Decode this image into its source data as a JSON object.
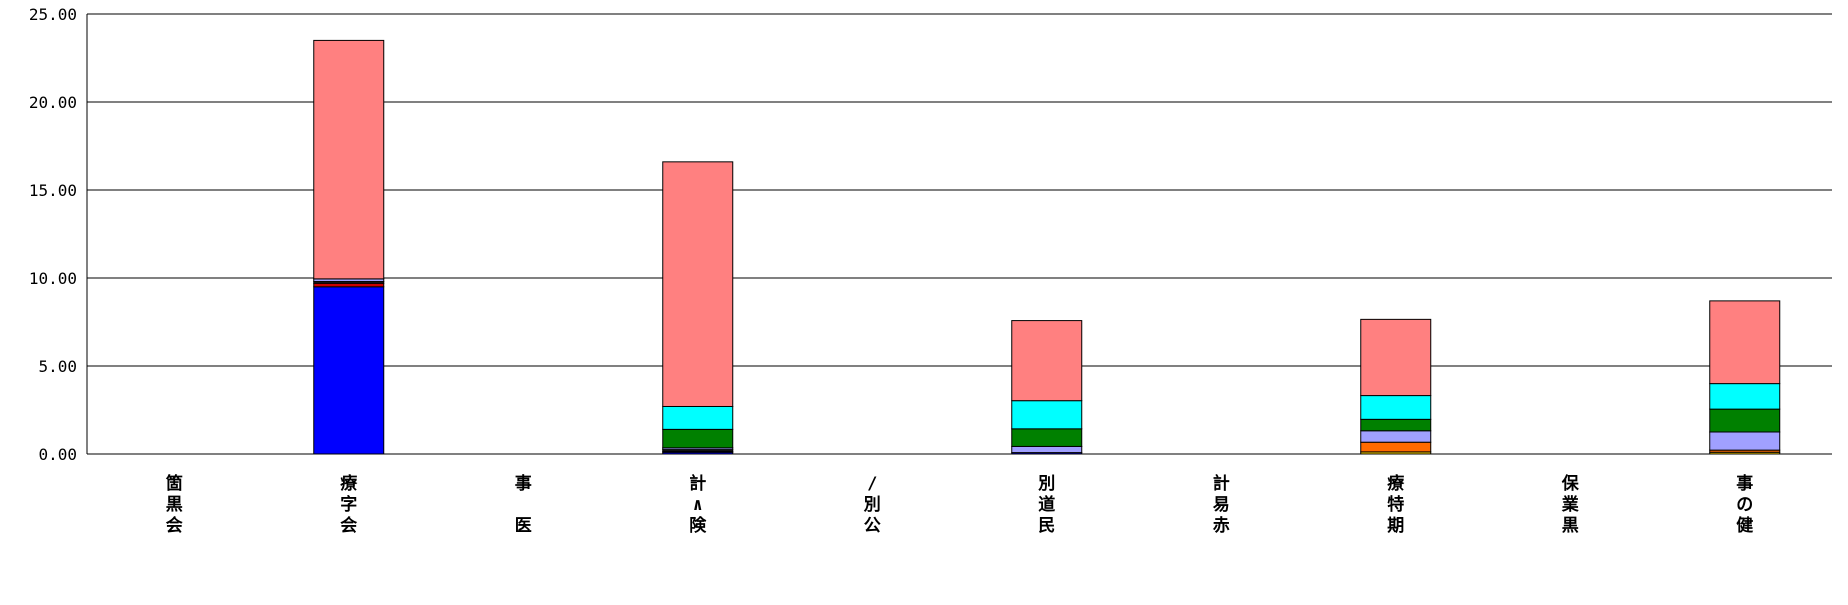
{
  "chart_data": {
    "type": "bar",
    "stacked": true,
    "categories": [
      [
        "箇",
        "黒",
        "会"
      ],
      [
        "療",
        "字",
        "会"
      ],
      [
        "事",
        "",
        "医"
      ],
      [
        "計",
        "∧",
        "険"
      ],
      [
        "/",
        "別",
        "公"
      ],
      [
        "別",
        "道",
        "民"
      ],
      [
        "計",
        "易",
        "赤"
      ],
      [
        "療",
        "特",
        "期"
      ],
      [
        "保",
        "業",
        "黒"
      ],
      [
        "事",
        "の",
        "健"
      ]
    ],
    "ylim": [
      0,
      25
    ],
    "yticks": [
      "0.00",
      "5.00",
      "10.00",
      "15.00",
      "20.00",
      "25.00"
    ],
    "ytick_values": [
      0,
      5,
      10,
      15,
      20,
      25
    ],
    "grid": true,
    "series": [
      {
        "color": "#FFD700",
        "values": [
          0,
          0,
          0,
          0,
          0,
          0,
          0,
          0.12,
          0,
          0.1
        ]
      },
      {
        "color": "#FF6A00",
        "values": [
          0,
          0,
          0,
          0,
          0,
          0,
          0,
          0.55,
          0,
          0.12
        ]
      },
      {
        "color": "#0000FF",
        "values": [
          0,
          9.5,
          0,
          0.1,
          0,
          0.08,
          0,
          0,
          0,
          0
        ]
      },
      {
        "color": "#CC0000",
        "values": [
          0,
          0.2,
          0,
          0.05,
          0,
          0,
          0,
          0,
          0,
          0
        ]
      },
      {
        "color": "#1A1A1A",
        "values": [
          0,
          0.1,
          0,
          0.1,
          0,
          0,
          0,
          0,
          0,
          0
        ]
      },
      {
        "color": "#A0A0FF",
        "values": [
          0,
          0.15,
          0,
          0.1,
          0,
          0.35,
          0,
          0.65,
          0,
          1.03
        ]
      },
      {
        "color": "#008000",
        "values": [
          0,
          0,
          0,
          1.05,
          0,
          1.0,
          0,
          0.65,
          0,
          1.3
        ]
      },
      {
        "color": "#00FFFF",
        "values": [
          0,
          0,
          0,
          1.3,
          0,
          1.6,
          0,
          1.35,
          0,
          1.45
        ]
      },
      {
        "color": "#FF8080",
        "values": [
          0,
          13.55,
          0,
          13.9,
          0,
          4.55,
          0,
          4.33,
          0,
          4.7
        ]
      }
    ]
  }
}
